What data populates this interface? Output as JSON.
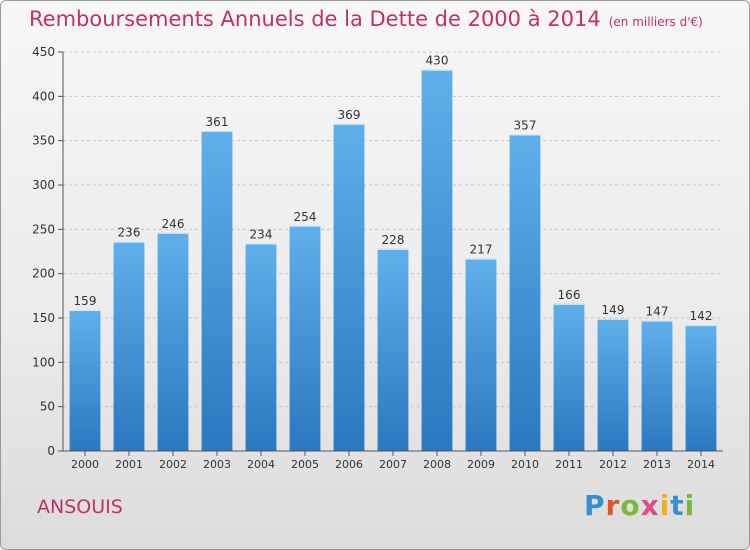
{
  "title": "Remboursements Annuels de la Dette de 2000 à 2014",
  "unit_note": "(en milliers d'€)",
  "commune": "ANSOUIS",
  "logo": "Proxiti",
  "colors": {
    "title": "#c0306a",
    "bar_top": "#5fb0ea",
    "bar_bottom": "#2a78c0"
  },
  "chart_data": {
    "type": "bar",
    "title": "Remboursements Annuels de la Dette de 2000 à 2014",
    "xlabel": "",
    "ylabel": "",
    "categories": [
      "2000",
      "2001",
      "2002",
      "2003",
      "2004",
      "2005",
      "2006",
      "2007",
      "2008",
      "2009",
      "2010",
      "2011",
      "2012",
      "2013",
      "2014"
    ],
    "values": [
      159,
      236,
      246,
      361,
      234,
      254,
      369,
      228,
      430,
      217,
      357,
      166,
      149,
      147,
      142
    ],
    "ylim": [
      0,
      450
    ],
    "yticks": [
      0,
      50,
      100,
      150,
      200,
      250,
      300,
      350,
      400,
      450
    ],
    "grid": true,
    "data_labels": true
  }
}
